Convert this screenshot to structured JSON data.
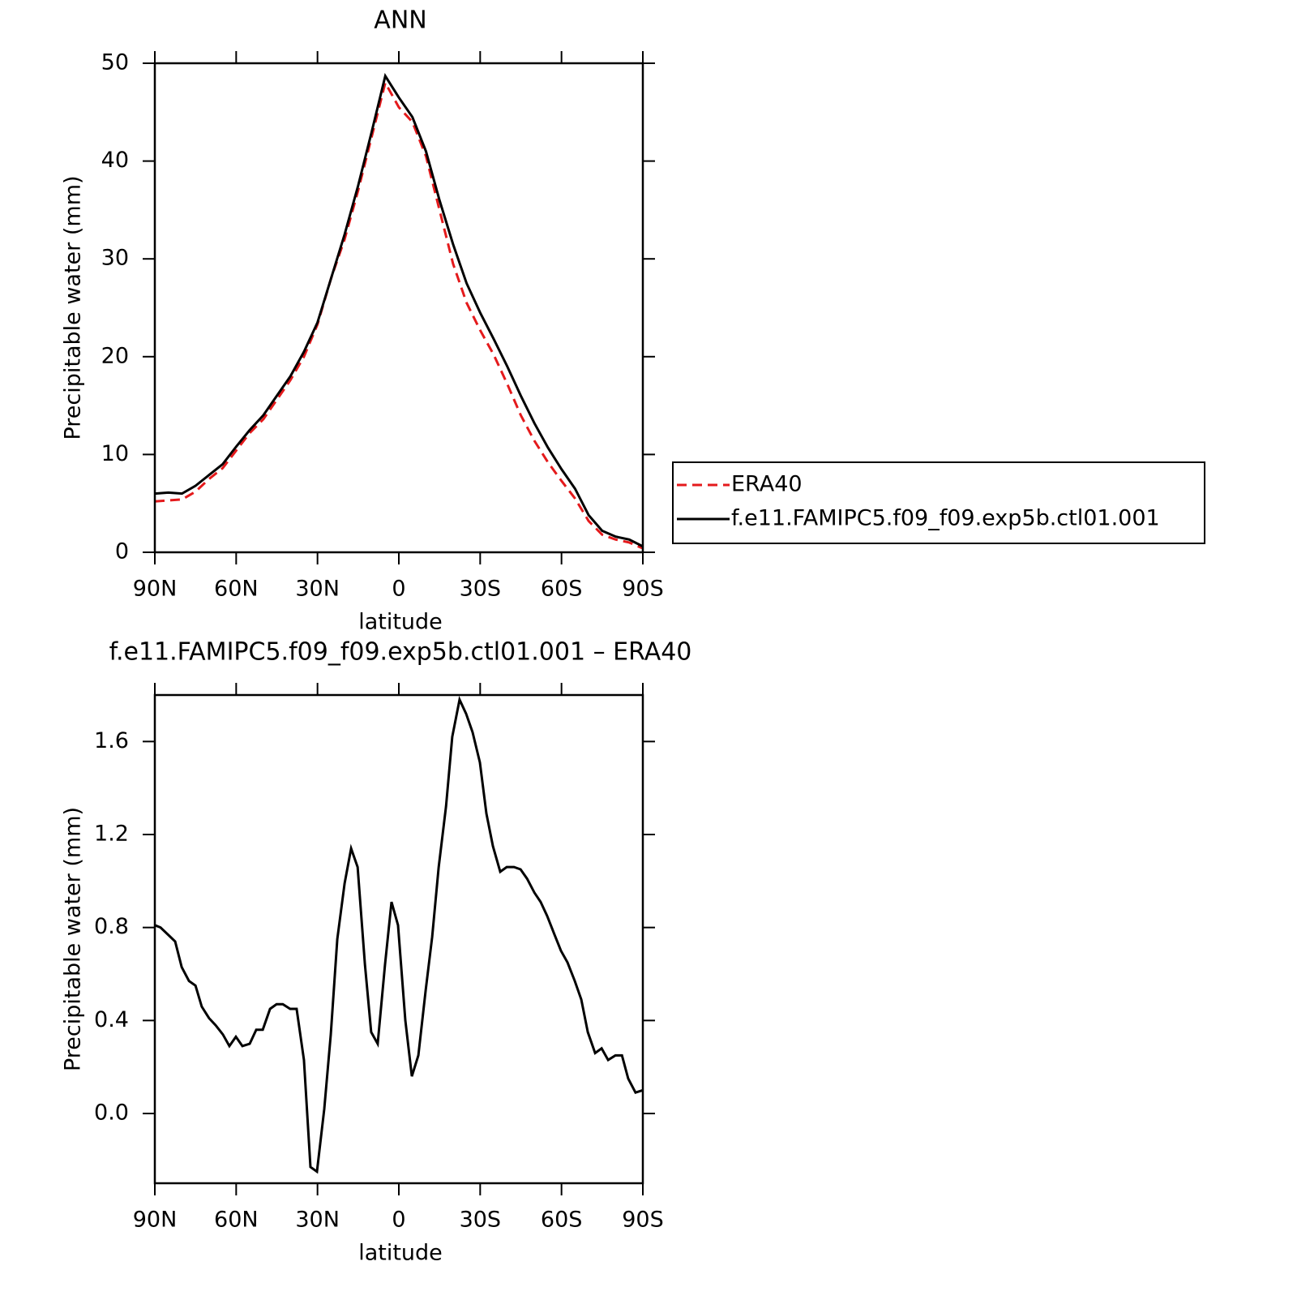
{
  "chart_data": [
    {
      "type": "line",
      "title": "ANN",
      "xlabel": "latitude",
      "ylabel": "Precipitable water (mm)",
      "x": [
        90,
        85,
        80,
        75,
        70,
        65,
        60,
        55,
        50,
        45,
        40,
        35,
        30,
        25,
        20,
        15,
        10,
        5,
        0,
        -5,
        -10,
        -15,
        -20,
        -25,
        -30,
        -35,
        -40,
        -45,
        -50,
        -55,
        -60,
        -65,
        -70,
        -75,
        -80,
        -85,
        -90
      ],
      "series": [
        {
          "name": "ERA40",
          "color": "#e41a1c",
          "line_style": "dashed",
          "values": [
            5.2,
            5.3,
            5.4,
            6.2,
            7.5,
            8.6,
            10.4,
            12.2,
            13.6,
            15.6,
            17.6,
            20.0,
            23.3,
            28.0,
            32.0,
            37.0,
            42.5,
            48.0,
            45.5,
            44.0,
            40.5,
            35.0,
            29.5,
            25.5,
            22.7,
            20.2,
            17.2,
            14.0,
            11.4,
            9.2,
            7.3,
            5.5,
            3.2,
            1.8,
            1.3,
            1.0,
            0.4
          ]
        },
        {
          "name": "f.e11.FAMIPC5.f09_f09.exp5b.ctl01.001",
          "color": "#000000",
          "line_style": "solid",
          "values": [
            6.0,
            6.1,
            6.0,
            6.8,
            7.9,
            9.0,
            10.8,
            12.5,
            14.0,
            16.0,
            18.0,
            20.5,
            23.5,
            28.0,
            32.5,
            37.5,
            43.0,
            48.7,
            46.5,
            44.5,
            41.0,
            36.0,
            31.5,
            27.5,
            24.5,
            21.8,
            19.0,
            16.0,
            13.2,
            10.7,
            8.5,
            6.5,
            3.8,
            2.2,
            1.6,
            1.3,
            0.6
          ]
        }
      ],
      "xlim": [
        90,
        -90
      ],
      "xticks": [
        {
          "value": 90,
          "label": "90N"
        },
        {
          "value": 60,
          "label": "60N"
        },
        {
          "value": 30,
          "label": "30N"
        },
        0,
        {
          "value": -30,
          "label": "30S"
        },
        {
          "value": -60,
          "label": "60S"
        },
        {
          "value": -90,
          "label": "90S"
        }
      ],
      "ylim": [
        0,
        50
      ],
      "yticks": [
        0,
        10,
        20,
        30,
        40,
        50
      ],
      "legend": "right"
    },
    {
      "type": "line",
      "title": "f.e11.FAMIPC5.f09_f09.exp5b.ctl01.001 – ERA40",
      "xlabel": "latitude",
      "ylabel": "Precipitable water (mm)",
      "x": [
        90,
        87.9,
        85.2,
        82.5,
        80.1,
        77.4,
        75.0,
        72.7,
        70.0,
        67.6,
        64.9,
        62.5,
        60.1,
        57.7,
        55.0,
        52.6,
        50.2,
        47.5,
        45.1,
        42.8,
        40.1,
        37.7,
        35.0,
        32.6,
        30.2,
        27.5,
        25.1,
        22.7,
        20.0,
        17.6,
        15.2,
        12.5,
        10.2,
        7.8,
        5.1,
        2.7,
        0.3,
        -2.4,
        -4.8,
        -7.2,
        -9.9,
        -12.3,
        -14.7,
        -17.4,
        -19.7,
        -22.4,
        -24.8,
        -27.2,
        -29.9,
        -32.3,
        -34.7,
        -37.4,
        -39.8,
        -42.5,
        -44.9,
        -47.3,
        -50.0,
        -52.3,
        -54.7,
        -57.4,
        -59.8,
        -62.2,
        -64.9,
        -67.3,
        -69.7,
        -72.4,
        -74.8,
        -77.2,
        -79.9,
        -82.3,
        -84.6,
        -87.3,
        -90
      ],
      "series": [
        {
          "name": "f.e11.FAMIPC5.f09_f09.exp5b.ctl01.001",
          "color": "#000000",
          "line_style": "solid",
          "values": [
            0.81,
            0.8,
            0.77,
            0.74,
            0.63,
            0.57,
            0.55,
            0.46,
            0.41,
            0.38,
            0.34,
            0.29,
            0.33,
            0.29,
            0.3,
            0.36,
            0.36,
            0.45,
            0.47,
            0.47,
            0.45,
            0.45,
            0.23,
            -0.23,
            -0.25,
            0.02,
            0.34,
            0.75,
            0.99,
            1.14,
            1.06,
            0.64,
            0.35,
            0.3,
            0.64,
            0.91,
            0.81,
            0.4,
            0.16,
            0.25,
            0.53,
            0.76,
            1.06,
            1.32,
            1.62,
            1.78,
            1.72,
            1.64,
            1.51,
            1.29,
            1.15,
            1.04,
            1.06,
            1.06,
            1.05,
            1.01,
            0.95,
            0.91,
            0.85,
            0.77,
            0.7,
            0.65,
            0.57,
            0.49,
            0.35,
            0.26,
            0.28,
            0.23,
            0.25,
            0.25,
            0.15,
            0.09,
            0.1
          ]
        }
      ],
      "xlim": [
        90,
        -90
      ],
      "xticks": [
        {
          "value": 90,
          "label": "90N"
        },
        {
          "value": 60,
          "label": "60N"
        },
        {
          "value": 30,
          "label": "30N"
        },
        0,
        {
          "value": -30,
          "label": "30S"
        },
        {
          "value": -60,
          "label": "60S"
        },
        {
          "value": -90,
          "label": "90S"
        }
      ],
      "ylim": [
        -0.3,
        1.8
      ],
      "yticks": [
        {
          "value": 0,
          "label": "0.0"
        },
        0.4,
        0.8,
        1.2,
        1.6
      ]
    }
  ]
}
